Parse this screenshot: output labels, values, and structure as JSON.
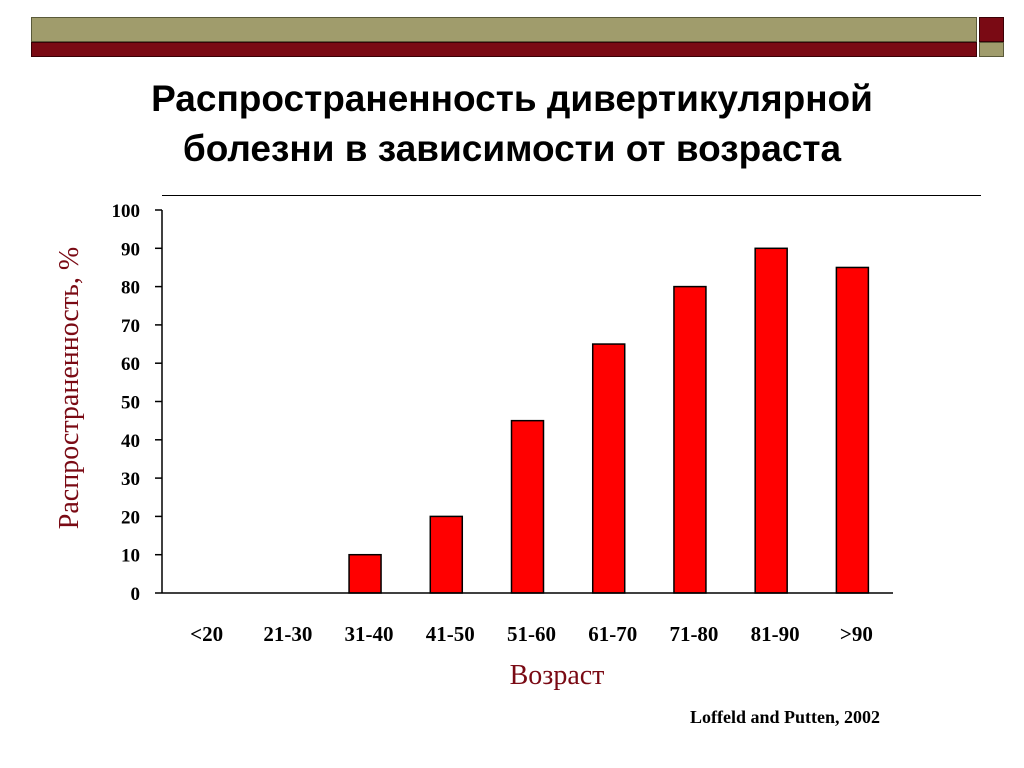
{
  "slide": {
    "title_line1": "Распространенность дивертикулярной",
    "title_line2": "болезни в зависимости от возраста",
    "citation": "Loffeld and  Putten,  2002"
  },
  "colors": {
    "bar": "#ff0000",
    "axis_title": "#7a0a14",
    "band_olive": "#a09c6c",
    "band_dark": "#7a0a14"
  },
  "chart_data": {
    "type": "bar",
    "categories": [
      "<20",
      "21-30",
      "31-40",
      "41-50",
      "51-60",
      "61-70",
      "71-80",
      "81-90",
      ">90"
    ],
    "values": [
      0,
      0,
      10,
      20,
      45,
      65,
      80,
      90,
      85
    ],
    "ylabel": "Распространенность, %",
    "xlabel": "Возраст",
    "ylim": [
      0,
      100
    ],
    "yticks": [
      0,
      10,
      20,
      30,
      40,
      50,
      60,
      70,
      80,
      90,
      100
    ],
    "grid": false,
    "legend": "none"
  }
}
